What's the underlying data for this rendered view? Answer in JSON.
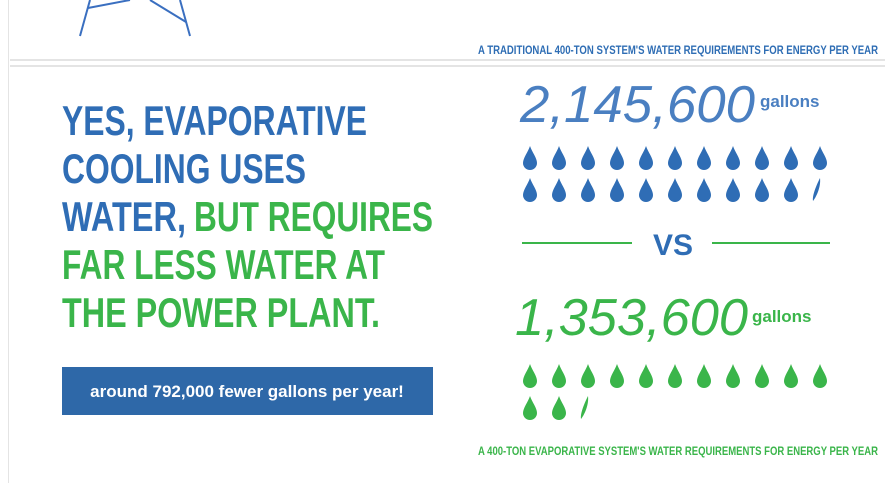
{
  "top_caption": "A TRADITIONAL 400-TON SYSTEM'S WATER REQUIREMENTS FOR ENERGY PER YEAR",
  "headline": {
    "blue": [
      "YES, EVAPORATIVE",
      "COOLING USES",
      "WATER,"
    ],
    "green": [
      "BUT REQUIRES",
      "FAR LESS WATER AT",
      "THE POWER PLANT."
    ]
  },
  "callout": "around 792,000 fewer gallons per year!",
  "traditional": {
    "amount": "2,145,600",
    "unit": "gallons"
  },
  "vs": "VS",
  "evaporative": {
    "amount": "1,353,600",
    "unit": "gallons",
    "caption": "A 400-TON EVAPORATIVE SYSTEM'S WATER REQUIREMENTS FOR ENERGY PER YEAR"
  }
}
